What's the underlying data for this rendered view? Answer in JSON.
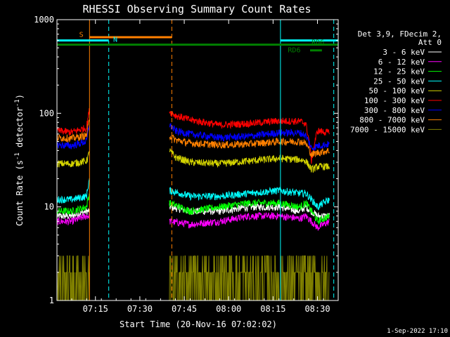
{
  "chart_data": {
    "type": "line",
    "title": "RHESSI Observing Summary Count Rates",
    "xlabel": "Start Time (20-Nov-16 07:02:02)",
    "ylabel_prefix": "Count Rate (s",
    "ylabel_sup": "-1",
    "ylabel_suffix": " detector",
    "ylabel_sup2": "-1",
    "ylabel_end": ")",
    "yscale": "log",
    "ylim": [
      1,
      1000
    ],
    "xlim_minutes": [
      0,
      95
    ],
    "x_tick_minutes": [
      13,
      28,
      43,
      58,
      73,
      88
    ],
    "x_tick_labels": [
      "07:15",
      "07:30",
      "07:45",
      "08:00",
      "08:15",
      "08:30"
    ],
    "y_tick_values": [
      1,
      10,
      100,
      1000
    ],
    "y_tick_labels": [
      "1",
      "10",
      "100",
      "1000"
    ],
    "data_gaps_minutes": [
      [
        11,
        37.5
      ]
    ],
    "legend_header": [
      "Det 3,9, FDecim 2,",
      "Att 0"
    ],
    "series": [
      {
        "name": "3 - 6 keV",
        "color": "#ffffff",
        "segments": [
          {
            "x": [
              0,
              5,
              10,
              11
            ],
            "y": [
              8,
              8,
              9,
              9
            ]
          },
          {
            "x": [
              38,
              45,
              55,
              65,
              75,
              82,
              84,
              88,
              92
            ],
            "y": [
              10,
              9,
              9,
              10,
              10,
              9,
              10,
              8,
              8
            ]
          }
        ]
      },
      {
        "name": "6 - 12 keV",
        "color": "#ff00ff",
        "segments": [
          {
            "x": [
              0,
              5,
              10,
              11
            ],
            "y": [
              7,
              7,
              8,
              8
            ]
          },
          {
            "x": [
              38,
              45,
              55,
              65,
              75,
              82,
              84,
              88,
              92
            ],
            "y": [
              7,
              6.5,
              7,
              8,
              8,
              7.5,
              8,
              6,
              7
            ]
          }
        ]
      },
      {
        "name": "12 - 25 keV",
        "color": "#00ff00",
        "segments": [
          {
            "x": [
              0,
              5,
              10,
              11
            ],
            "y": [
              9,
              9,
              10,
              14
            ]
          },
          {
            "x": [
              38,
              45,
              55,
              65,
              75,
              82,
              84,
              88,
              92
            ],
            "y": [
              11,
              9,
              10,
              11,
              11,
              10,
              11,
              7,
              8
            ]
          }
        ]
      },
      {
        "name": "25 - 50 keV",
        "color": "#00ffff",
        "segments": [
          {
            "x": [
              0,
              5,
              10,
              11
            ],
            "y": [
              12,
              12,
              13,
              20
            ]
          },
          {
            "x": [
              38,
              45,
              55,
              65,
              75,
              82,
              84,
              88,
              92
            ],
            "y": [
              15,
              13,
              13,
              14,
              15,
              14,
              14,
              10,
              12
            ]
          }
        ]
      },
      {
        "name": "50 - 100 keV",
        "color": "#d4d400",
        "segments": [
          {
            "x": [
              0,
              5,
              10,
              11
            ],
            "y": [
              29,
              29,
              31,
              38
            ]
          },
          {
            "x": [
              38,
              40,
              45,
              55,
              65,
              75,
              82,
              84,
              86,
              88,
              92
            ],
            "y": [
              40,
              34,
              30,
              29,
              31,
              33,
              32,
              31,
              25,
              27,
              27
            ]
          }
        ]
      },
      {
        "name": "100 - 300 keV",
        "color": "#ff0000",
        "segments": [
          {
            "x": [
              0,
              5,
              10,
              11
            ],
            "y": [
              65,
              63,
              70,
              110
            ]
          },
          {
            "x": [
              38,
              40,
              45,
              55,
              65,
              75,
              82,
              84,
              86,
              88,
              92
            ],
            "y": [
              105,
              95,
              85,
              75,
              78,
              83,
              82,
              78,
              30,
              65,
              62
            ]
          }
        ]
      },
      {
        "name": "300 - 800 keV",
        "color": "#0000ff",
        "segments": [
          {
            "x": [
              0,
              5,
              10,
              11
            ],
            "y": [
              46,
              45,
              50,
              75
            ]
          },
          {
            "x": [
              38,
              40,
              45,
              55,
              65,
              75,
              82,
              84,
              86,
              88,
              92
            ],
            "y": [
              75,
              65,
              60,
              55,
              57,
              62,
              62,
              58,
              42,
              45,
              47
            ]
          }
        ]
      },
      {
        "name": "800 - 7000 keV",
        "color": "#ff8000",
        "segments": [
          {
            "x": [
              0,
              5,
              10,
              11
            ],
            "y": [
              55,
              54,
              58,
              85
            ]
          },
          {
            "x": [
              38,
              40,
              45,
              55,
              65,
              75,
              82,
              84,
              86,
              88,
              92
            ],
            "y": [
              58,
              52,
              48,
              46,
              47,
              50,
              50,
              48,
              36,
              38,
              40
            ]
          }
        ]
      },
      {
        "name": "7000 - 15000 keV",
        "color": "#808000",
        "segments": [
          {
            "x": [
              0,
              3,
              6,
              9,
              11
            ],
            "y": [
              1.6,
              2,
              1.7,
              2.3,
              3
            ]
          },
          {
            "x": [
              38,
              45,
              55,
              65,
              75,
              82,
              88,
              92
            ],
            "y": [
              2.5,
              2,
              2.2,
              2.4,
              2.6,
              2.2,
              2.3,
              2.4
            ]
          }
        ]
      }
    ],
    "vertical_lines": [
      {
        "minute": 0,
        "color": "#00ffff",
        "style": "solid"
      },
      {
        "minute": 11,
        "color": "#ff8000",
        "style": "solid"
      },
      {
        "minute": 17.5,
        "color": "#00ffff",
        "style": "dashed"
      },
      {
        "minute": 38.8,
        "color": "#ff8000",
        "style": "dashed"
      },
      {
        "minute": 75.5,
        "color": "#00ffff",
        "style": "solid"
      },
      {
        "minute": 93.5,
        "color": "#00ffff",
        "style": "dashed"
      }
    ],
    "flag_bars": [
      {
        "label": "S",
        "color": "#ff8000",
        "x_start": 11,
        "x_end": 38.8,
        "y": 650
      },
      {
        "label": "N",
        "color": "#00ffff",
        "x_start": 0,
        "x_end": 17.5,
        "y": 600
      },
      {
        "label": "N",
        "color": "#00ffff",
        "x_start": 75.5,
        "x_end": 95,
        "y": 600
      },
      {
        "label": "",
        "color": "#008000",
        "x_start": 0,
        "x_end": 95,
        "y": 540
      },
      {
        "label": "RD6",
        "color": "#008000",
        "x_start": 85.5,
        "x_end": 89.5,
        "y": 470
      }
    ],
    "flag_labels": [
      {
        "label": "S",
        "color": "#ff8000",
        "x": 7.5,
        "y": 700
      },
      {
        "label": "N",
        "color": "#00ffff",
        "x": 19,
        "y": 620
      },
      {
        "label": "RD6",
        "color": "#008000",
        "x": 86,
        "y": 580
      },
      {
        "label": "RD6",
        "color": "#008000",
        "x": 78,
        "y": 480
      }
    ]
  },
  "timestamp": "1-Sep-2022 17:10"
}
